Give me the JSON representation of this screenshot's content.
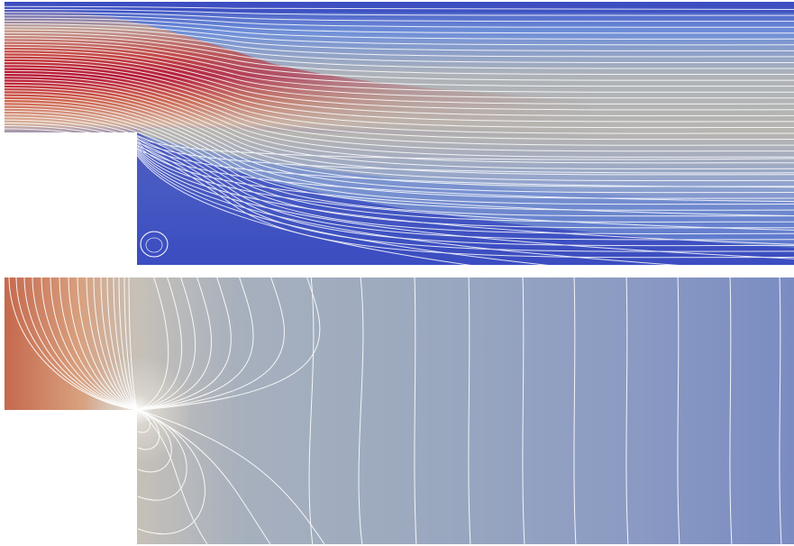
{
  "figure": {
    "panels": [
      {
        "name": "velocity-streamlines",
        "colormap": [
          "#3b4cc0",
          "#aeb3b9",
          "#b40426"
        ]
      },
      {
        "name": "pressure-contours",
        "colormap": [
          "#7a8fbf",
          "#9eaab9",
          "#c4654a"
        ]
      }
    ],
    "contour_color": "#ffffff",
    "background": "#ffffff"
  }
}
